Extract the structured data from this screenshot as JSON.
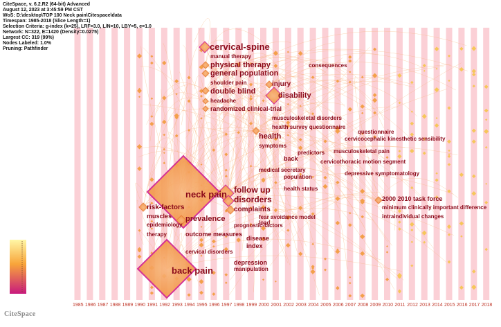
{
  "header": {
    "app_line": "CiteSpace, v. 6.2.R2 (64-bit) Advanced",
    "date_line": "August 12, 2023 at 3:45:59 PM CST",
    "wos_line": "WoS: D:\\desktop\\TOP 100 Neck pain\\Citespace\\data",
    "timespan_line": "Timespan: 1985-2018 (Slice Length=1)",
    "selection_line": "Selection Criteria: g-index (k=25), LRF=3.0, L/N=10, LBY=5, e=1.0",
    "network_line": "Network: N=322, E=1420 (Density=0.0275)",
    "largest_cc_line": "Largest CC: 319 (99%)",
    "nodes_labeled_line": "Nodes Labeled: 1.0%",
    "pruning_line": "Pruning: Pathfinder"
  },
  "years": [
    "1985",
    "1986",
    "1987",
    "1988",
    "1989",
    "1990",
    "1991",
    "1992",
    "1993",
    "1994",
    "1995",
    "1996",
    "1997",
    "1998",
    "1999",
    "2000",
    "2001",
    "2002",
    "2003",
    "2004",
    "2005",
    "2006",
    "2007",
    "2008",
    "2009",
    "2010",
    "2011",
    "2012",
    "2013",
    "2014",
    "2015",
    "2016",
    "2017",
    "2018"
  ],
  "keywords": [
    {
      "id": "cervical-spine",
      "label": "cervical-spine"
    },
    {
      "id": "manual-therapy",
      "label": "manual therapy"
    },
    {
      "id": "physical-therapy",
      "label": "physical therapy"
    },
    {
      "id": "general-population",
      "label": "general population"
    },
    {
      "id": "shoulder-pain",
      "label": "shoulder pain"
    },
    {
      "id": "injury",
      "label": "injury"
    },
    {
      "id": "double-blind",
      "label": "double blind"
    },
    {
      "id": "disability",
      "label": "disability"
    },
    {
      "id": "headache",
      "label": "headache"
    },
    {
      "id": "randomized-clinical-trial",
      "label": "randomized clinical-trial"
    },
    {
      "id": "consequences",
      "label": "consequences"
    },
    {
      "id": "musculoskeletal-disorders",
      "label": "musculoskeletal disorders"
    },
    {
      "id": "health-survey-questionnaire",
      "label": "health survey questionnaire"
    },
    {
      "id": "questionnaire",
      "label": "questionnaire"
    },
    {
      "id": "health",
      "label": "health"
    },
    {
      "id": "cervicocephalic-kinesthetic-sensibility",
      "label": "cervicocephalic kinesthetic sensibility"
    },
    {
      "id": "symptoms",
      "label": "symptoms"
    },
    {
      "id": "predictors",
      "label": "predictors"
    },
    {
      "id": "musculoskeletal-pain",
      "label": "musculoskeletal pain"
    },
    {
      "id": "back",
      "label": "back"
    },
    {
      "id": "cervicothoracic-motion-segment",
      "label": "cervicothoracic motion segment"
    },
    {
      "id": "medical-secretary",
      "label": "medical secretary"
    },
    {
      "id": "depressive-symptomatology",
      "label": "depressive symptomatology"
    },
    {
      "id": "population",
      "label": "population"
    },
    {
      "id": "neck-pain",
      "label": "neck pain"
    },
    {
      "id": "follow-up",
      "label": "follow up"
    },
    {
      "id": "health-status",
      "label": "health status"
    },
    {
      "id": "disorders",
      "label": "disorders"
    },
    {
      "id": "task-force",
      "label": "2000 2010 task force"
    },
    {
      "id": "risk-factors",
      "label": "risk-factors"
    },
    {
      "id": "complaints",
      "label": "complaints"
    },
    {
      "id": "minimum-clinically-important-difference",
      "label": "minimum clinically important difference"
    },
    {
      "id": "muscles",
      "label": "muscles"
    },
    {
      "id": "prevalence",
      "label": "prevalence"
    },
    {
      "id": "fear-avoidance-model",
      "label": "fear avoidance model"
    },
    {
      "id": "intraindividual-changes",
      "label": "intraindividual changes"
    },
    {
      "id": "epidemiology",
      "label": "epidemiology"
    },
    {
      "id": "load",
      "label": "load"
    },
    {
      "id": "prognostic-factors",
      "label": "prognostic-factors"
    },
    {
      "id": "therapy",
      "label": "therapy"
    },
    {
      "id": "outcome-measures",
      "label": "outcome measures"
    },
    {
      "id": "disease",
      "label": "disease"
    },
    {
      "id": "index",
      "label": "index"
    },
    {
      "id": "cervical-disorders",
      "label": "cervical disorders"
    },
    {
      "id": "back-pain",
      "label": "back pain"
    },
    {
      "id": "depression",
      "label": "depression"
    },
    {
      "id": "manipulation",
      "label": "manipulation"
    }
  ],
  "colors": {
    "year_stripe": "#fbd0d6",
    "label_text": "#8b0a1a",
    "node_fill": "#f59a34",
    "node_border": "#d01f8f",
    "link_color": "#f7b27a",
    "legend_top": "#fff6a0",
    "legend_bottom": "#c8197d"
  },
  "logo": "CiteSpace"
}
